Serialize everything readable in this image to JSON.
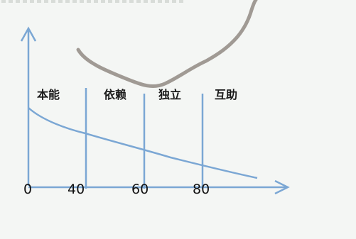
{
  "diagram": {
    "stages": [
      {
        "label": "本能"
      },
      {
        "label": "依赖"
      },
      {
        "label": "独立"
      },
      {
        "label": "互助"
      }
    ],
    "x_ticks": [
      "0",
      "40",
      "60",
      "80"
    ],
    "colors": {
      "axis": "#7ba7d4",
      "curve": "#7ba7d4",
      "dividers": "#7ba7d4",
      "scribble": "#a09a94",
      "background": "#f4f6f4"
    }
  }
}
